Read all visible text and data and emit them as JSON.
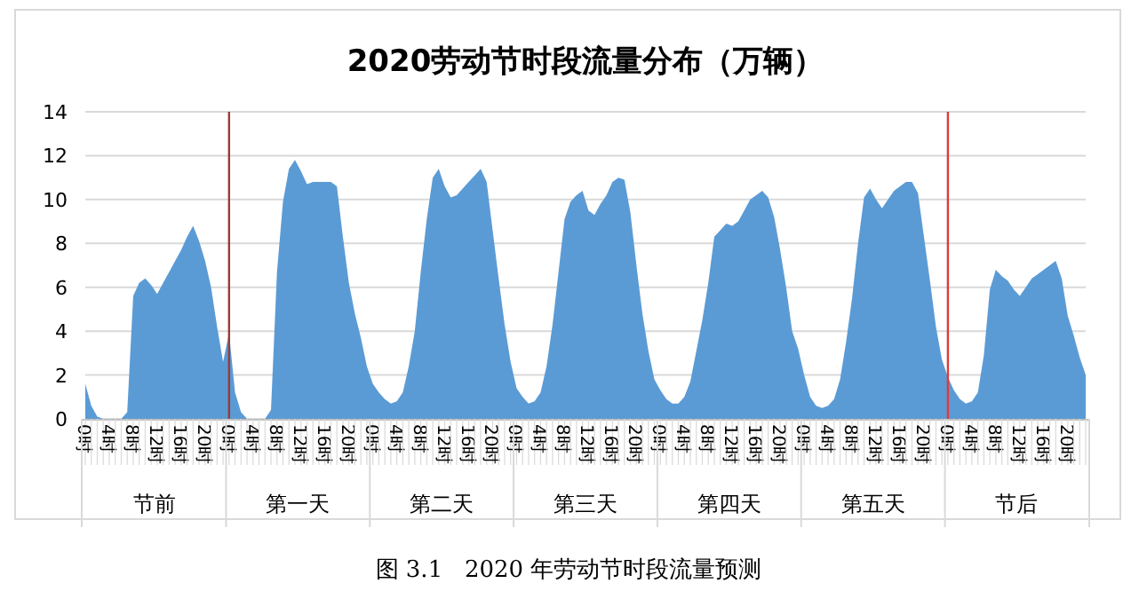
{
  "chart_data": {
    "type": "area",
    "title": "2020劳动节时段流量分布（万辆）",
    "categories": [
      "0时",
      null,
      null,
      null,
      "4时",
      null,
      null,
      null,
      "8时",
      null,
      null,
      null,
      "12时",
      null,
      null,
      null,
      "16时",
      null,
      null,
      null,
      "20时",
      null,
      null,
      null,
      "0时",
      null,
      null,
      null,
      "4时",
      null,
      null,
      null,
      "8时",
      null,
      null,
      null,
      "12时",
      null,
      null,
      null,
      "16时",
      null,
      null,
      null,
      "20时",
      null,
      null,
      null,
      "0时",
      null,
      null,
      null,
      "4时",
      null,
      null,
      null,
      "8时",
      null,
      null,
      null,
      "12时",
      null,
      null,
      null,
      "16时",
      null,
      null,
      null,
      "20时",
      null,
      null,
      null,
      "0时",
      null,
      null,
      null,
      "4时",
      null,
      null,
      null,
      "8时",
      null,
      null,
      null,
      "12时",
      null,
      null,
      null,
      "16时",
      null,
      null,
      null,
      "20时",
      null,
      null,
      null,
      "0时",
      null,
      null,
      null,
      "4时",
      null,
      null,
      null,
      "8时",
      null,
      null,
      null,
      "12时",
      null,
      null,
      null,
      "16时",
      null,
      null,
      null,
      "20时",
      null,
      null,
      null,
      "0时",
      null,
      null,
      null,
      "4时",
      null,
      null,
      null,
      "8时",
      null,
      null,
      null,
      "12时",
      null,
      null,
      null,
      "16时",
      null,
      null,
      null,
      "20时",
      null,
      null,
      null,
      "0时",
      null,
      null,
      null,
      "4时",
      null,
      null,
      null,
      "8时",
      null,
      null,
      null,
      "12时",
      null,
      null,
      null,
      "16时",
      null,
      null,
      null,
      "20时",
      null,
      null,
      null
    ],
    "values": [
      1.6,
      0.6,
      0.1,
      0,
      0,
      0,
      0,
      0.3,
      5.6,
      6.2,
      6.4,
      6.1,
      5.7,
      6.2,
      6.7,
      7.2,
      7.7,
      8.3,
      8.8,
      8.1,
      7.2,
      6.0,
      4.2,
      2.6,
      3.9,
      1.2,
      0.3,
      0,
      0,
      0,
      0,
      0.4,
      6.7,
      9.9,
      11.4,
      11.8,
      11.3,
      10.7,
      10.8,
      10.8,
      10.8,
      10.8,
      10.6,
      8.3,
      6.2,
      4.8,
      3.7,
      2.4,
      1.6,
      1.2,
      0.9,
      0.7,
      0.8,
      1.2,
      2.4,
      4.0,
      6.7,
      9.1,
      11.0,
      11.4,
      10.6,
      10.1,
      10.2,
      10.5,
      10.8,
      11.1,
      11.4,
      10.8,
      8.6,
      6.4,
      4.3,
      2.6,
      1.4,
      1.0,
      0.7,
      0.8,
      1.2,
      2.4,
      4.3,
      6.7,
      9.1,
      9.9,
      10.2,
      10.4,
      9.5,
      9.3,
      9.8,
      10.2,
      10.8,
      11.0,
      10.9,
      9.4,
      7.0,
      4.8,
      3.1,
      1.8,
      1.3,
      0.9,
      0.7,
      0.7,
      1.0,
      1.7,
      3.1,
      4.5,
      6.2,
      8.3,
      8.6,
      8.9,
      8.8,
      9.0,
      9.5,
      10.0,
      10.2,
      10.4,
      10.1,
      9.2,
      7.7,
      6.0,
      4.0,
      3.2,
      2.0,
      1.0,
      0.6,
      0.5,
      0.6,
      0.9,
      1.8,
      3.5,
      5.5,
      8.0,
      10.1,
      10.5,
      10.0,
      9.6,
      10.0,
      10.4,
      10.6,
      10.8,
      10.8,
      10.3,
      8.3,
      6.3,
      4.2,
      2.7,
      1.9,
      1.3,
      0.9,
      0.7,
      0.8,
      1.2,
      2.9,
      5.9,
      6.8,
      6.5,
      6.3,
      5.9,
      5.6,
      6.0,
      6.4,
      6.6,
      6.8,
      7.0,
      7.2,
      6.4,
      4.7,
      3.8,
      2.8,
      2.0
    ],
    "color": "#5b9bd5",
    "ylim": [
      0,
      14
    ],
    "yticks": [
      0,
      2,
      4,
      6,
      8,
      10,
      12,
      14
    ],
    "grid": "y",
    "annotations": [
      "节前",
      "第一天",
      "第二天",
      "第三天",
      "第四天",
      "第五天",
      "节后",
      "图 3.1   2020 年劳动节时段流量预测"
    ]
  }
}
